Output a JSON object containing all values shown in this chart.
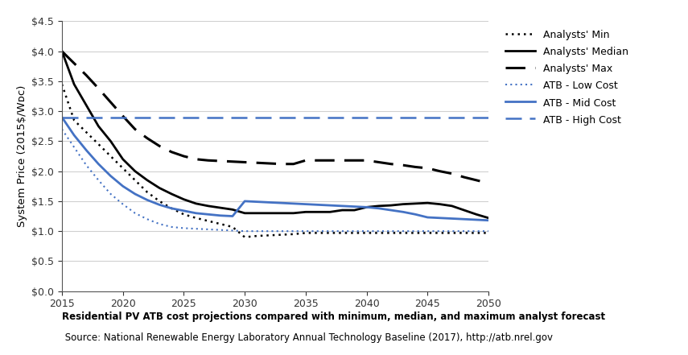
{
  "years": [
    2015,
    2016,
    2017,
    2018,
    2019,
    2020,
    2021,
    2022,
    2023,
    2024,
    2025,
    2026,
    2027,
    2028,
    2029,
    2030,
    2031,
    2032,
    2033,
    2034,
    2035,
    2036,
    2037,
    2038,
    2039,
    2040,
    2041,
    2042,
    2043,
    2044,
    2045,
    2046,
    2047,
    2048,
    2049,
    2050
  ],
  "analysts_min": [
    3.45,
    2.85,
    2.65,
    2.45,
    2.25,
    2.05,
    1.85,
    1.65,
    1.5,
    1.38,
    1.28,
    1.22,
    1.17,
    1.12,
    1.07,
    0.9,
    0.92,
    0.93,
    0.94,
    0.95,
    0.97,
    0.97,
    0.97,
    0.97,
    0.97,
    0.97,
    0.97,
    0.97,
    0.97,
    0.97,
    0.97,
    0.97,
    0.97,
    0.97,
    0.97,
    0.97
  ],
  "analysts_median": [
    4.0,
    3.45,
    3.1,
    2.75,
    2.5,
    2.2,
    2.0,
    1.85,
    1.72,
    1.62,
    1.53,
    1.46,
    1.42,
    1.39,
    1.36,
    1.3,
    1.3,
    1.3,
    1.3,
    1.3,
    1.32,
    1.32,
    1.32,
    1.35,
    1.35,
    1.4,
    1.42,
    1.43,
    1.45,
    1.46,
    1.47,
    1.45,
    1.42,
    1.35,
    1.28,
    1.22
  ],
  "analysts_max": [
    4.0,
    3.8,
    3.6,
    3.38,
    3.15,
    2.92,
    2.7,
    2.55,
    2.42,
    2.32,
    2.25,
    2.2,
    2.18,
    2.17,
    2.16,
    2.15,
    2.14,
    2.13,
    2.12,
    2.12,
    2.18,
    2.18,
    2.18,
    2.18,
    2.18,
    2.18,
    2.15,
    2.12,
    2.1,
    2.07,
    2.05,
    2.0,
    1.96,
    1.9,
    1.85,
    1.8
  ],
  "atb_low": [
    2.7,
    2.4,
    2.1,
    1.85,
    1.62,
    1.45,
    1.3,
    1.2,
    1.12,
    1.07,
    1.05,
    1.04,
    1.03,
    1.02,
    1.01,
    1.0,
    1.0,
    1.0,
    1.0,
    1.0,
    1.0,
    1.0,
    1.0,
    1.0,
    1.0,
    1.0,
    1.0,
    1.0,
    1.0,
    1.0,
    1.0,
    1.0,
    1.0,
    1.0,
    1.0,
    1.0
  ],
  "atb_mid": [
    2.9,
    2.6,
    2.35,
    2.12,
    1.92,
    1.75,
    1.62,
    1.52,
    1.44,
    1.38,
    1.34,
    1.3,
    1.28,
    1.26,
    1.25,
    1.5,
    1.49,
    1.48,
    1.47,
    1.46,
    1.45,
    1.44,
    1.43,
    1.42,
    1.41,
    1.4,
    1.38,
    1.35,
    1.32,
    1.28,
    1.23,
    1.22,
    1.21,
    1.2,
    1.19,
    1.18
  ],
  "atb_high_val": 2.9,
  "ylim": [
    0.0,
    4.5
  ],
  "yticks": [
    0.0,
    0.5,
    1.0,
    1.5,
    2.0,
    2.5,
    3.0,
    3.5,
    4.0,
    4.5
  ],
  "xticks": [
    2015,
    2020,
    2025,
    2030,
    2035,
    2040,
    2045,
    2050
  ],
  "xlim": [
    2015,
    2050
  ],
  "color_black": "#000000",
  "color_blue": "#4472C4",
  "color_bg": "#FFFFFF",
  "color_gray_bg": "#808080",
  "ylabel": "System Price (2015$/Wᴅᴄ)",
  "caption_line1": "Residential PV ATB cost projections compared with minimum, median, and maximum analyst forecast",
  "caption_line2": " Source: National Renewable Energy Laboratory Annual Technology Baseline (2017), http://atb.nrel.gov",
  "legend_labels": [
    "Analysts' Min",
    "Analysts' Median",
    "Analysts' Max",
    "ATB - Low Cost",
    "ATB - Mid Cost",
    "ATB - High Cost"
  ]
}
